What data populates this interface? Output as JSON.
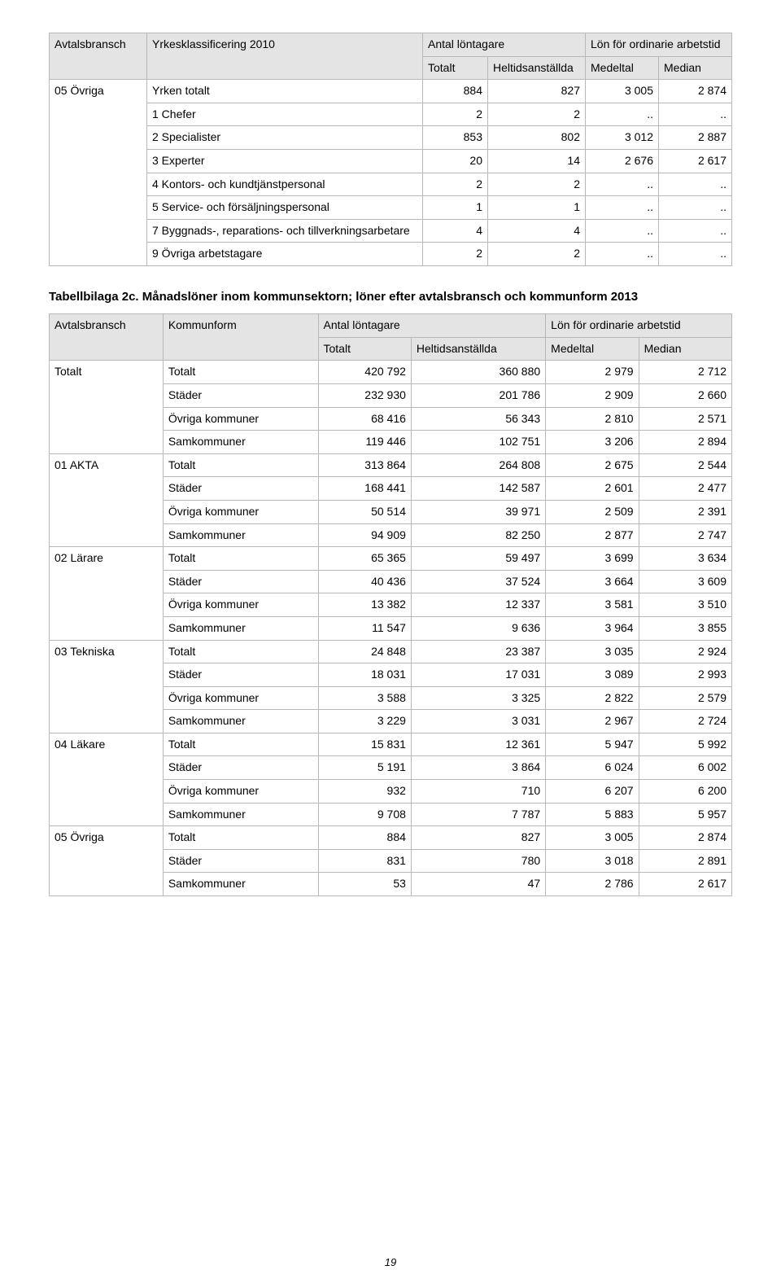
{
  "page_number": "19",
  "fonts": {
    "body_pt": 14,
    "title_pt": 15
  },
  "colors": {
    "text": "#000000",
    "header_bg": "#e4e4e4",
    "border": "#b8b8b8",
    "background": "#ffffff"
  },
  "table1": {
    "header": {
      "avtalsbransch": "Avtalsbransch",
      "yrkesklass": "Yrkesklassificering 2010",
      "antal_lontagare": "Antal löntagare",
      "lon_ordinarie": "Lön för ordinarie arbetstid",
      "totalt": "Totalt",
      "heltid": "Heltidsanställda",
      "medeltal": "Medeltal",
      "median": "Median"
    },
    "group": {
      "bransch": "05 Övriga",
      "rows": [
        {
          "label": "Yrken totalt",
          "totalt": "884",
          "heltid": "827",
          "medeltal": "3 005",
          "median": "2 874"
        },
        {
          "label": "1 Chefer",
          "totalt": "2",
          "heltid": "2",
          "medeltal": "..",
          "median": ".."
        },
        {
          "label": "2 Specialister",
          "totalt": "853",
          "heltid": "802",
          "medeltal": "3 012",
          "median": "2 887"
        },
        {
          "label": "3 Experter",
          "totalt": "20",
          "heltid": "14",
          "medeltal": "2 676",
          "median": "2 617"
        },
        {
          "label": "4 Kontors- och kundtjänstpersonal",
          "totalt": "2",
          "heltid": "2",
          "medeltal": "..",
          "median": ".."
        },
        {
          "label": "5 Service- och försäljningspersonal",
          "totalt": "1",
          "heltid": "1",
          "medeltal": "..",
          "median": ".."
        },
        {
          "label": "7 Byggnads-, reparations- och tillverkningsarbetare",
          "totalt": "4",
          "heltid": "4",
          "medeltal": "..",
          "median": ".."
        },
        {
          "label": "9 Övriga arbetstagare",
          "totalt": "2",
          "heltid": "2",
          "medeltal": "..",
          "median": ".."
        }
      ]
    }
  },
  "section2_title": "Tabellbilaga 2c. Månadslöner inom kommunsektorn; löner efter avtalsbransch och kommunform 2013",
  "table2": {
    "header": {
      "avtalsbransch": "Avtalsbransch",
      "kommunform": "Kommunform",
      "antal_lontagare": "Antal löntagare",
      "lon_ordinarie": "Lön för ordinarie arbetstid",
      "totalt": "Totalt",
      "heltid": "Heltidsanställda",
      "medeltal": "Medeltal",
      "median": "Median"
    },
    "groups": [
      {
        "bransch": "Totalt",
        "rows": [
          {
            "kommunform": "Totalt",
            "totalt": "420 792",
            "heltid": "360 880",
            "medeltal": "2 979",
            "median": "2 712"
          },
          {
            "kommunform": "Städer",
            "totalt": "232 930",
            "heltid": "201 786",
            "medeltal": "2 909",
            "median": "2 660"
          },
          {
            "kommunform": "Övriga kommuner",
            "totalt": "68 416",
            "heltid": "56 343",
            "medeltal": "2 810",
            "median": "2 571"
          },
          {
            "kommunform": "Samkommuner",
            "totalt": "119 446",
            "heltid": "102 751",
            "medeltal": "3 206",
            "median": "2 894"
          }
        ]
      },
      {
        "bransch": "01 AKTA",
        "rows": [
          {
            "kommunform": "Totalt",
            "totalt": "313 864",
            "heltid": "264 808",
            "medeltal": "2 675",
            "median": "2 544"
          },
          {
            "kommunform": "Städer",
            "totalt": "168 441",
            "heltid": "142 587",
            "medeltal": "2 601",
            "median": "2 477"
          },
          {
            "kommunform": "Övriga kommuner",
            "totalt": "50 514",
            "heltid": "39 971",
            "medeltal": "2 509",
            "median": "2 391"
          },
          {
            "kommunform": "Samkommuner",
            "totalt": "94 909",
            "heltid": "82 250",
            "medeltal": "2 877",
            "median": "2 747"
          }
        ]
      },
      {
        "bransch": "02 Lärare",
        "rows": [
          {
            "kommunform": "Totalt",
            "totalt": "65 365",
            "heltid": "59 497",
            "medeltal": "3 699",
            "median": "3 634"
          },
          {
            "kommunform": "Städer",
            "totalt": "40 436",
            "heltid": "37 524",
            "medeltal": "3 664",
            "median": "3 609"
          },
          {
            "kommunform": "Övriga kommuner",
            "totalt": "13 382",
            "heltid": "12 337",
            "medeltal": "3 581",
            "median": "3 510"
          },
          {
            "kommunform": "Samkommuner",
            "totalt": "11 547",
            "heltid": "9 636",
            "medeltal": "3 964",
            "median": "3 855"
          }
        ]
      },
      {
        "bransch": "03 Tekniska",
        "rows": [
          {
            "kommunform": "Totalt",
            "totalt": "24 848",
            "heltid": "23 387",
            "medeltal": "3 035",
            "median": "2 924"
          },
          {
            "kommunform": "Städer",
            "totalt": "18 031",
            "heltid": "17 031",
            "medeltal": "3 089",
            "median": "2 993"
          },
          {
            "kommunform": "Övriga kommuner",
            "totalt": "3 588",
            "heltid": "3 325",
            "medeltal": "2 822",
            "median": "2 579"
          },
          {
            "kommunform": "Samkommuner",
            "totalt": "3 229",
            "heltid": "3 031",
            "medeltal": "2 967",
            "median": "2 724"
          }
        ]
      },
      {
        "bransch": "04 Läkare",
        "rows": [
          {
            "kommunform": "Totalt",
            "totalt": "15 831",
            "heltid": "12 361",
            "medeltal": "5 947",
            "median": "5 992"
          },
          {
            "kommunform": "Städer",
            "totalt": "5 191",
            "heltid": "3 864",
            "medeltal": "6 024",
            "median": "6 002"
          },
          {
            "kommunform": "Övriga kommuner",
            "totalt": "932",
            "heltid": "710",
            "medeltal": "6 207",
            "median": "6 200"
          },
          {
            "kommunform": "Samkommuner",
            "totalt": "9 708",
            "heltid": "7 787",
            "medeltal": "5 883",
            "median": "5 957"
          }
        ]
      },
      {
        "bransch": "05 Övriga",
        "rows": [
          {
            "kommunform": "Totalt",
            "totalt": "884",
            "heltid": "827",
            "medeltal": "3 005",
            "median": "2 874"
          },
          {
            "kommunform": "Städer",
            "totalt": "831",
            "heltid": "780",
            "medeltal": "3 018",
            "median": "2 891"
          },
          {
            "kommunform": "Samkommuner",
            "totalt": "53",
            "heltid": "47",
            "medeltal": "2 786",
            "median": "2 617"
          }
        ]
      }
    ]
  }
}
